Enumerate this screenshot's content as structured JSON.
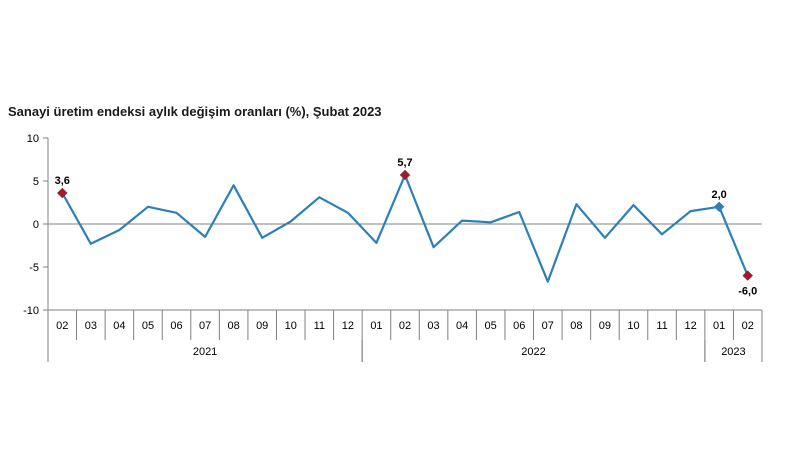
{
  "chart_data": {
    "type": "line",
    "title": "Sanayi üretim endeksi aylık değişim oranları (%), Şubat 2023",
    "xlabel": "",
    "ylabel": "",
    "ylim": [
      -10,
      10
    ],
    "yticks": [
      10,
      5,
      0,
      -5,
      -10
    ],
    "grid": false,
    "categories": [
      "02",
      "03",
      "04",
      "05",
      "06",
      "07",
      "08",
      "09",
      "10",
      "11",
      "12",
      "01",
      "02",
      "03",
      "04",
      "05",
      "06",
      "07",
      "08",
      "09",
      "10",
      "11",
      "12",
      "01",
      "02"
    ],
    "year_groups": [
      {
        "label": "2021",
        "count": 11
      },
      {
        "label": "2022",
        "count": 12
      },
      {
        "label": "2023",
        "count": 2
      }
    ],
    "series": [
      {
        "values": [
          3.6,
          -2.3,
          -0.7,
          2.0,
          1.3,
          -1.5,
          4.5,
          -1.6,
          0.3,
          3.1,
          1.3,
          -2.2,
          5.7,
          -2.7,
          0.4,
          0.2,
          1.4,
          -6.7,
          2.3,
          -1.6,
          2.2,
          -1.2,
          1.5,
          2.0,
          -6.0
        ],
        "color": "#2e7fb8"
      }
    ],
    "highlighted_points": [
      {
        "index": 0,
        "label": "3,6",
        "color": "#a01c2c"
      },
      {
        "index": 12,
        "label": "5,7",
        "color": "#a01c2c"
      },
      {
        "index": 23,
        "label": "2,0",
        "color": "#2e7fb8"
      },
      {
        "index": 24,
        "label": "-6,0",
        "color": "#a01c2c"
      }
    ]
  }
}
